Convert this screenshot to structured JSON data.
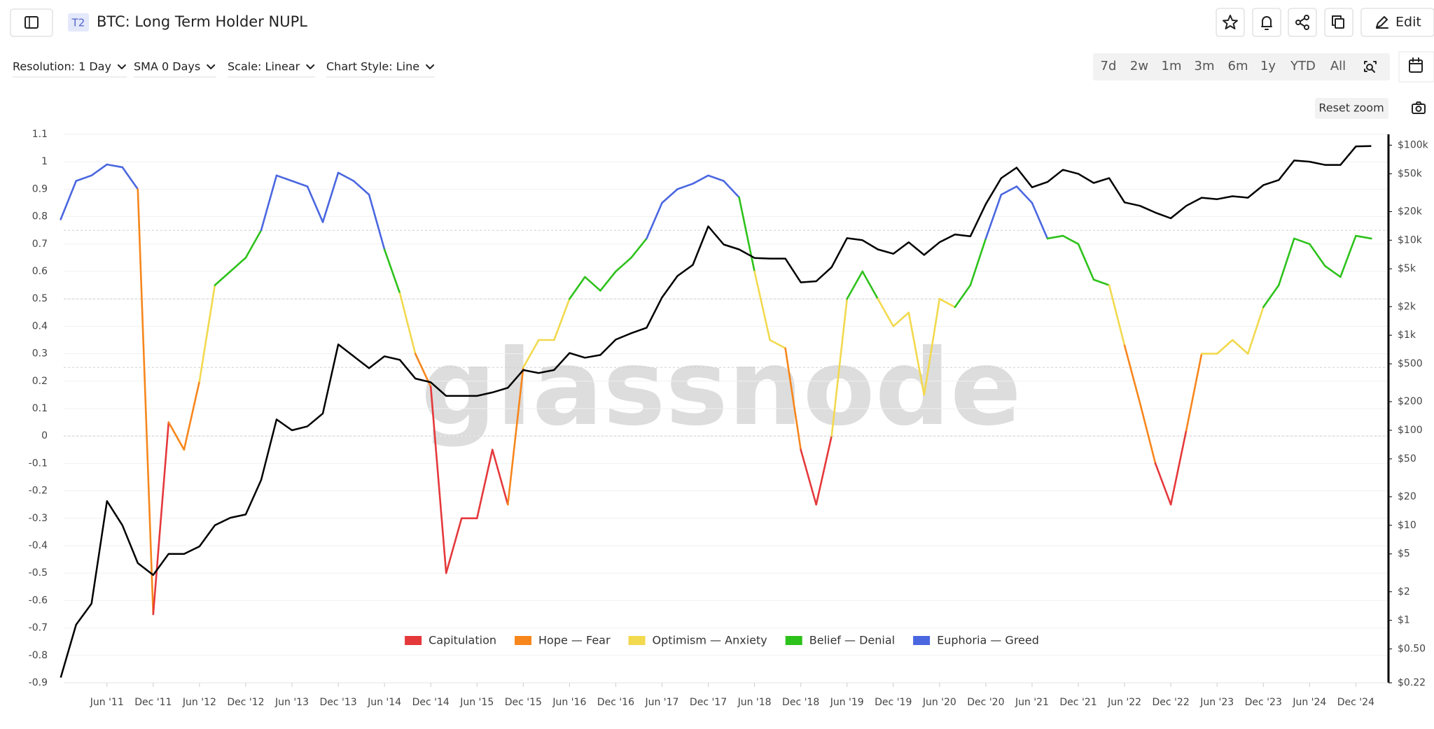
{
  "header": {
    "badge": "T2",
    "title": "BTC: Long Term Holder NUPL",
    "edit": "Edit"
  },
  "toolbar": {
    "resolution": "Resolution: 1 Day",
    "sma": "SMA 0 Days",
    "scale": "Scale: Linear",
    "style": "Chart Style: Line"
  },
  "ranges": [
    "7d",
    "2w",
    "1m",
    "3m",
    "6m",
    "1y",
    "YTD",
    "All"
  ],
  "reset_zoom": "Reset zoom",
  "watermark": "glassnode",
  "chart_data": {
    "type": "line",
    "x": [
      "Dec '10",
      "Feb '11",
      "Apr '11",
      "Jun '11",
      "Aug '11",
      "Oct '11",
      "Dec '11",
      "Feb '12",
      "Apr '12",
      "Jun '12",
      "Aug '12",
      "Oct '12",
      "Dec '12",
      "Feb '13",
      "Apr '13",
      "Jun '13",
      "Aug '13",
      "Oct '13",
      "Dec '13",
      "Feb '14",
      "Apr '14",
      "Jun '14",
      "Aug '14",
      "Oct '14",
      "Dec '14",
      "Feb '15",
      "Apr '15",
      "Jun '15",
      "Aug '15",
      "Oct '15",
      "Dec '15",
      "Feb '16",
      "Apr '16",
      "Jun '16",
      "Aug '16",
      "Oct '16",
      "Dec '16",
      "Feb '17",
      "Apr '17",
      "Jun '17",
      "Aug '17",
      "Oct '17",
      "Dec '17",
      "Feb '18",
      "Apr '18",
      "Jun '18",
      "Aug '18",
      "Oct '18",
      "Dec '18",
      "Feb '19",
      "Apr '19",
      "Jun '19",
      "Aug '19",
      "Oct '19",
      "Dec '19",
      "Feb '20",
      "Apr '20",
      "Jun '20",
      "Aug '20",
      "Oct '20",
      "Dec '20",
      "Feb '21",
      "Apr '21",
      "Jun '21",
      "Aug '21",
      "Oct '21",
      "Dec '21",
      "Feb '22",
      "Apr '22",
      "Jun '22",
      "Aug '22",
      "Oct '22",
      "Dec '22",
      "Feb '23",
      "Apr '23",
      "Jun '23",
      "Aug '23",
      "Oct '23",
      "Dec '23",
      "Feb '24",
      "Apr '24",
      "Jun '24",
      "Aug '24",
      "Oct '24",
      "Dec '24",
      "Feb '25"
    ],
    "xticks": [
      "Jun '11",
      "Dec '11",
      "Jun '12",
      "Dec '12",
      "Jun '13",
      "Dec '13",
      "Jun '14",
      "Dec '14",
      "Jun '15",
      "Dec '15",
      "Jun '16",
      "Dec '16",
      "Jun '17",
      "Dec '17",
      "Jun '18",
      "Dec '18",
      "Jun '19",
      "Dec '19",
      "Jun '20",
      "Dec '20",
      "Jun '21",
      "Dec '21",
      "Jun '22",
      "Dec '22",
      "Jun '23",
      "Dec '23",
      "Jun '24",
      "Dec '24"
    ],
    "ylim": [
      -0.9,
      1.1
    ],
    "yticks": [
      -0.9,
      -0.8,
      -0.7,
      -0.6,
      -0.5,
      -0.4,
      -0.3,
      -0.2,
      -0.1,
      0,
      0.1,
      0.2,
      0.3,
      0.4,
      0.5,
      0.6,
      0.7,
      0.8,
      0.9,
      1,
      1.1
    ],
    "y2lim": [
      0.22,
      130000
    ],
    "y2log": true,
    "y2ticks": [
      {
        "value": 0.22,
        "label": "$0.22"
      },
      {
        "value": 0.5,
        "label": "$0.50"
      },
      {
        "value": 1,
        "label": "$1"
      },
      {
        "value": 2,
        "label": "$2"
      },
      {
        "value": 5,
        "label": "$5"
      },
      {
        "value": 10,
        "label": "$10"
      },
      {
        "value": 20,
        "label": "$20"
      },
      {
        "value": 50,
        "label": "$50"
      },
      {
        "value": 100,
        "label": "$100"
      },
      {
        "value": 200,
        "label": "$200"
      },
      {
        "value": 500,
        "label": "$500"
      },
      {
        "value": 1000,
        "label": "$1k"
      },
      {
        "value": 2000,
        "label": "$2k"
      },
      {
        "value": 5000,
        "label": "$5k"
      },
      {
        "value": 10000,
        "label": "$10k"
      },
      {
        "value": 20000,
        "label": "$20k"
      },
      {
        "value": 50000,
        "label": "$50k"
      },
      {
        "value": 100000,
        "label": "$100k"
      }
    ],
    "grid": true,
    "zones": [
      {
        "name": "Capitulation",
        "color": "#e5383b",
        "max": 0
      },
      {
        "name": "Hope — Fear",
        "color": "#f7861c",
        "max": 0.25
      },
      {
        "name": "Optimism — Anxiety",
        "color": "#f2d94e",
        "max": 0.5
      },
      {
        "name": "Belief — Denial",
        "color": "#2dc21b",
        "max": 0.75
      },
      {
        "name": "Euphoria — Greed",
        "color": "#4a67e0"
      }
    ],
    "series": [
      {
        "values": [
          0.79,
          0.93,
          0.95,
          0.99,
          0.98,
          0.9,
          -0.65,
          0.05,
          -0.05,
          0.2,
          0.55,
          0.6,
          0.65,
          0.75,
          0.95,
          0.93,
          0.91,
          0.78,
          0.96,
          0.93,
          0.88,
          0.68,
          0.52,
          0.3,
          0.18,
          -0.5,
          -0.3,
          -0.3,
          -0.05,
          -0.25,
          0.25,
          0.35,
          0.35,
          0.5,
          0.58,
          0.53,
          0.6,
          0.65,
          0.72,
          0.85,
          0.9,
          0.92,
          0.95,
          0.93,
          0.87,
          0.6,
          0.35,
          0.32,
          -0.05,
          -0.25,
          0.0,
          0.5,
          0.6,
          0.5,
          0.4,
          0.45,
          0.15,
          0.5,
          0.47,
          0.55,
          0.72,
          0.88,
          0.91,
          0.85,
          0.72,
          0.73,
          0.7,
          0.57,
          0.55,
          0.33,
          0.12,
          -0.1,
          -0.25,
          0.02,
          0.3,
          0.3,
          0.35,
          0.3,
          0.47,
          0.55,
          0.72,
          0.7,
          0.62,
          0.58,
          0.73,
          0.72
        ]
      },
      {
        "color": "#000000",
        "axis": "y2",
        "values": [
          0.25,
          0.9,
          1.5,
          18,
          10,
          4,
          3,
          5,
          5,
          6,
          10,
          12,
          13,
          30,
          130,
          100,
          110,
          150,
          800,
          600,
          450,
          600,
          550,
          350,
          320,
          230,
          230,
          230,
          250,
          280,
          430,
          400,
          430,
          650,
          580,
          620,
          900,
          1050,
          1200,
          2500,
          4200,
          5500,
          14000,
          9000,
          8000,
          6500,
          6400,
          6400,
          3600,
          3700,
          5200,
          10500,
          10000,
          8000,
          7200,
          9500,
          7000,
          9500,
          11500,
          11000,
          24000,
          45000,
          58000,
          36000,
          41000,
          55000,
          50000,
          40000,
          45000,
          25000,
          23000,
          19500,
          17000,
          23000,
          28000,
          27000,
          29000,
          28000,
          38000,
          43000,
          69000,
          67000,
          62000,
          62000,
          97000,
          98000
        ]
      }
    ]
  }
}
